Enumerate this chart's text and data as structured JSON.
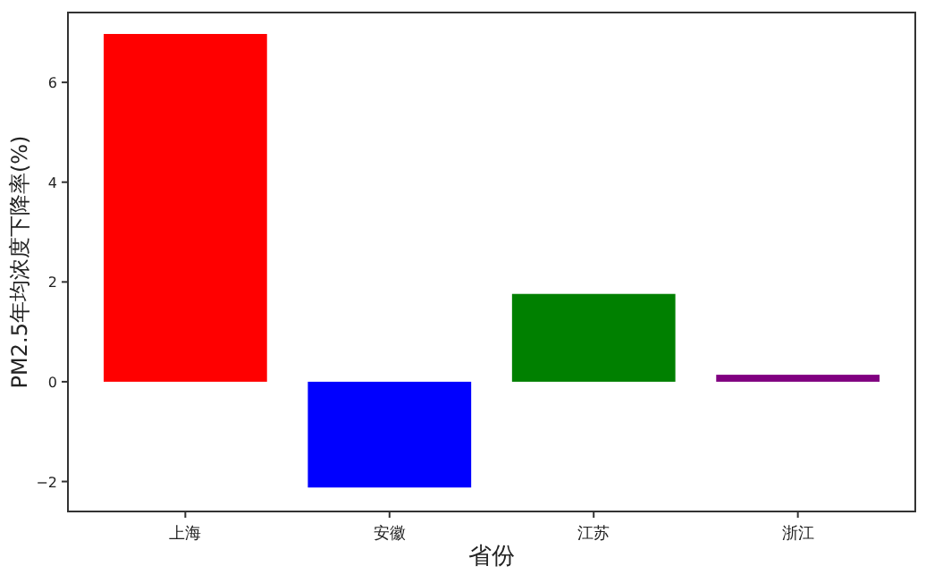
{
  "chart_data": {
    "type": "bar",
    "xlabel": "省份",
    "ylabel": "PM2.5年均浓度下降率(%)",
    "categories": [
      "上海",
      "安徽",
      "江苏",
      "浙江"
    ],
    "values": [
      6.97,
      -2.12,
      1.76,
      0.14
    ],
    "colors": [
      "#ff0000",
      "#0000ff",
      "#008000",
      "#800080"
    ],
    "ylim": [
      -2.6,
      7.4
    ],
    "yticks": [
      -2,
      0,
      2,
      4,
      6
    ],
    "grid": false
  }
}
